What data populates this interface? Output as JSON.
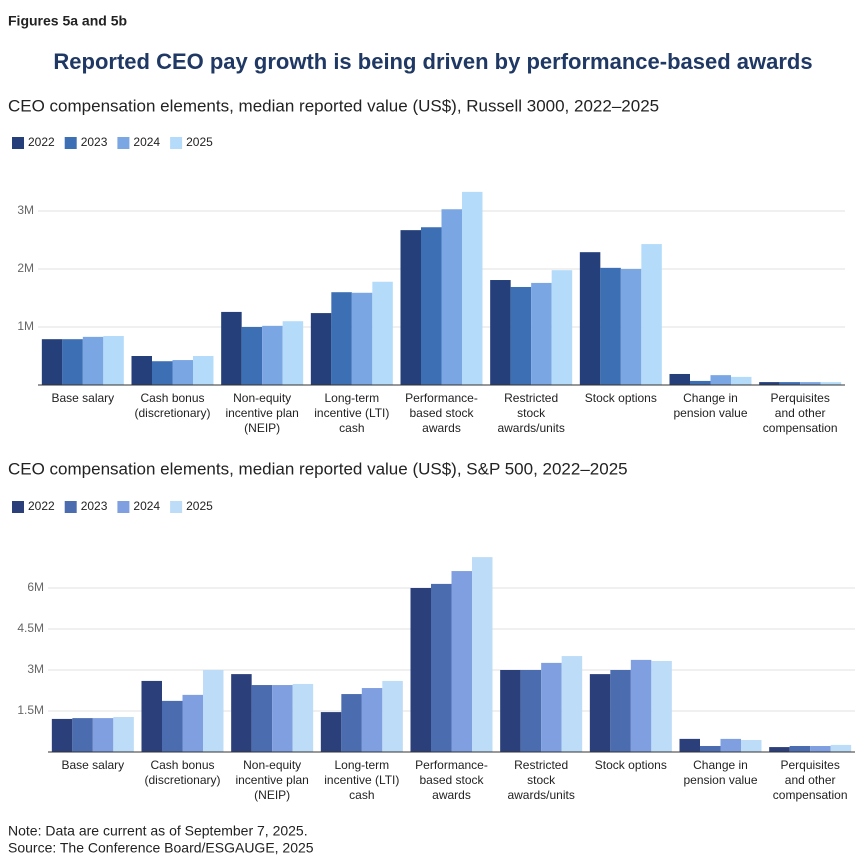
{
  "header": {
    "label": "Figures 5a and 5b",
    "title": "Reported CEO pay growth is being driven by performance-based awards"
  },
  "chart_data": [
    {
      "type": "bar",
      "title": "CEO compensation elements, median reported value (US$), Russell 3000, 2022–2025",
      "categories": [
        "Base salary",
        "Cash bonus\n(discretionary)",
        "Non-equity\nincentive plan\n(NEIP)",
        "Long-term\nincentive (LTI)\ncash",
        "Performance-\nbased stock\nawards",
        "Restricted\nstock\nawards/units",
        "Stock options",
        "Change in\npension value",
        "Perquisites\nand other\ncompensation"
      ],
      "series": [
        {
          "name": "2022",
          "color": "#243f7a",
          "values": [
            790000,
            500000,
            1260000,
            1240000,
            2670000,
            1810000,
            2290000,
            190000,
            50000
          ]
        },
        {
          "name": "2023",
          "color": "#3d6fb4",
          "values": [
            790000,
            410000,
            1000000,
            1600000,
            2720000,
            1690000,
            2020000,
            70000,
            50000
          ]
        },
        {
          "name": "2024",
          "color": "#7aa6e3",
          "values": [
            830000,
            430000,
            1020000,
            1590000,
            3030000,
            1760000,
            2000000,
            170000,
            50000
          ]
        },
        {
          "name": "2025",
          "color": "#b4dcfa",
          "values": [
            845000,
            500000,
            1100000,
            1780000,
            3330000,
            1980000,
            2430000,
            140000,
            50000
          ]
        }
      ],
      "ylim": [
        0,
        3500000
      ],
      "yticks": [
        {
          "value": 1000000,
          "label": "1M"
        },
        {
          "value": 2000000,
          "label": "2M"
        },
        {
          "value": 3000000,
          "label": "3M"
        }
      ],
      "grid": true
    },
    {
      "type": "bar",
      "title": "CEO compensation elements, median reported value (US$), S&P 500, 2022–2025",
      "categories": [
        "Base salary",
        "Cash bonus\n(discretionary)",
        "Non-equity\nincentive plan\n(NEIP)",
        "Long-term\nincentive (LTI)\ncash",
        "Performance-\nbased stock\nawards",
        "Restricted\nstock\nawards/units",
        "Stock options",
        "Change in\npension value",
        "Perquisites\nand other\ncompensation"
      ],
      "series": [
        {
          "name": "2022",
          "color": "#2b3f7a",
          "values": [
            1210000,
            2600000,
            2850000,
            1460000,
            6000000,
            3000000,
            2850000,
            480000,
            180000
          ]
        },
        {
          "name": "2023",
          "color": "#4c6cb0",
          "values": [
            1240000,
            1870000,
            2450000,
            2120000,
            6150000,
            3000000,
            3000000,
            220000,
            220000
          ]
        },
        {
          "name": "2024",
          "color": "#7f9fe0",
          "values": [
            1240000,
            2090000,
            2450000,
            2340000,
            6620000,
            3260000,
            3370000,
            480000,
            220000
          ]
        },
        {
          "name": "2025",
          "color": "#bcdcf7",
          "values": [
            1280000,
            3000000,
            2490000,
            2600000,
            7130000,
            3510000,
            3330000,
            440000,
            260000
          ]
        }
      ],
      "ylim": [
        0,
        7500000
      ],
      "yticks": [
        {
          "value": 1500000,
          "label": "1.5M"
        },
        {
          "value": 3000000,
          "label": "3M"
        },
        {
          "value": 4500000,
          "label": "4.5M"
        },
        {
          "value": 6000000,
          "label": "6M"
        }
      ],
      "grid": true
    }
  ],
  "note": "Note: Data are current as of September 7, 2025.",
  "source": "Source: The Conference Board/ESGAUGE, 2025"
}
